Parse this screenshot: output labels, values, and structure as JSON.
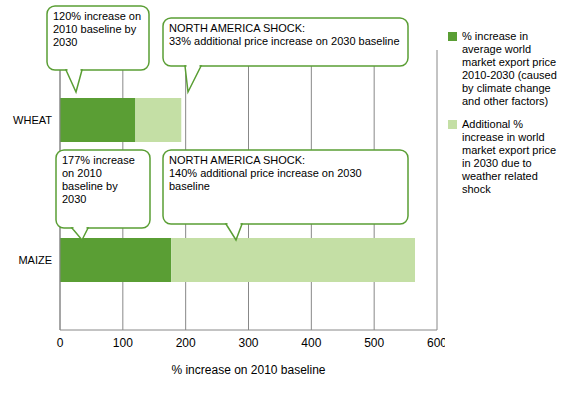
{
  "chart_data": {
    "type": "bar",
    "orientation": "horizontal",
    "stacked": true,
    "categories": [
      "WHEAT",
      "MAIZE"
    ],
    "series": [
      {
        "name": "% increase in average world market export price 2010-2030 (caused by climate change and other factors)",
        "color": "#5a9e34",
        "values": [
          120,
          177
        ]
      },
      {
        "name": "Additional % increase in world market export price in 2030 due to weather related shock",
        "color": "#c4dfa5",
        "values": [
          73,
          388
        ]
      }
    ],
    "xlabel": "% increase on 2010 baseline",
    "xlim": [
      0,
      600
    ],
    "xticks": [
      0,
      100,
      200,
      300,
      400,
      500,
      600
    ],
    "grid": true,
    "legend": "right",
    "annotations": [
      "120% increase on 2010 baseline by 2030",
      "NORTH AMERICA SHOCK:\n33% additional price increase on 2030 baseline",
      "177% increase on 2010 baseline by 2030",
      "NORTH AMERICA SHOCK:\n140% additional price increase on 2030 baseline"
    ]
  }
}
